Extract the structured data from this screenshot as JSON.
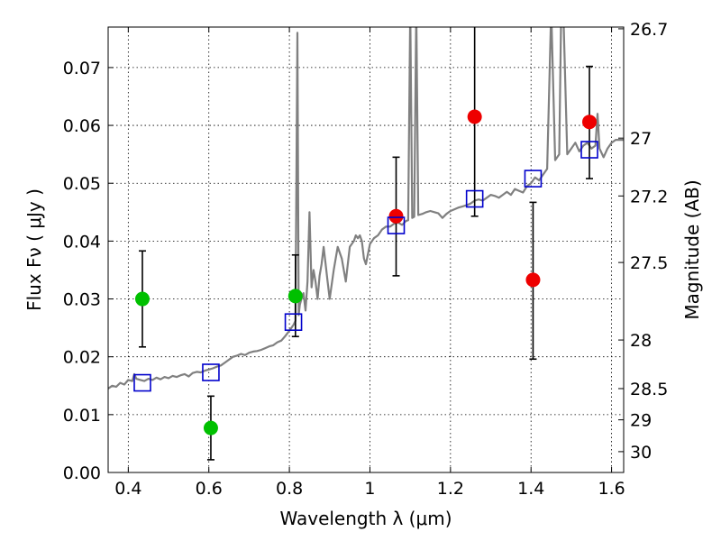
{
  "chart_data": {
    "type": "scatter",
    "xlabel": "Wavelength  λ (μm)",
    "ylabel": "Flux  Fν  ( μJy )",
    "y2label": "Magnitude (AB)",
    "xlim": [
      0.35,
      1.63
    ],
    "ylim": [
      0.0,
      0.077
    ],
    "grid": true,
    "x_ticks": [
      0.4,
      0.6,
      0.8,
      1.0,
      1.2,
      1.4,
      1.6
    ],
    "x_tick_labels": [
      "0.4",
      "0.6",
      "0.8",
      "1",
      "1.2",
      "1.4",
      "1.6"
    ],
    "y_ticks": [
      0.0,
      0.01,
      0.02,
      0.03,
      0.04,
      0.05,
      0.06,
      0.07
    ],
    "y_tick_labels": [
      "0.00",
      "0.01",
      "0.02",
      "0.03",
      "0.04",
      "0.05",
      "0.06",
      "0.07"
    ],
    "y2_ticks": [
      {
        "label": "26.7",
        "flux": 0.0767
      },
      {
        "label": "27",
        "flux": 0.0578
      },
      {
        "label": "27.2",
        "flux": 0.0478
      },
      {
        "label": "27.5",
        "flux": 0.0363
      },
      {
        "label": "28",
        "flux": 0.0229
      },
      {
        "label": "28.5",
        "flux": 0.0145
      },
      {
        "label": "29",
        "flux": 0.0091
      },
      {
        "label": "30",
        "flux": 0.0036
      }
    ],
    "series": [
      {
        "type": "line",
        "color": "#808080",
        "x": [
          0.35,
          0.36,
          0.37,
          0.38,
          0.39,
          0.4,
          0.41,
          0.415,
          0.42,
          0.43,
          0.44,
          0.45,
          0.46,
          0.47,
          0.48,
          0.49,
          0.5,
          0.51,
          0.52,
          0.53,
          0.54,
          0.55,
          0.56,
          0.57,
          0.58,
          0.59,
          0.6,
          0.61,
          0.62,
          0.63,
          0.64,
          0.65,
          0.66,
          0.67,
          0.68,
          0.69,
          0.7,
          0.71,
          0.72,
          0.73,
          0.74,
          0.75,
          0.76,
          0.77,
          0.78,
          0.79,
          0.8,
          0.805,
          0.81,
          0.815,
          0.82,
          0.823,
          0.826,
          0.83,
          0.835,
          0.84,
          0.845,
          0.85,
          0.855,
          0.86,
          0.865,
          0.87,
          0.875,
          0.88,
          0.885,
          0.89,
          0.895,
          0.9,
          0.91,
          0.92,
          0.93,
          0.94,
          0.95,
          0.96,
          0.965,
          0.97,
          0.975,
          0.98,
          0.985,
          0.99,
          1.0,
          1.01,
          1.02,
          1.03,
          1.04,
          1.05,
          1.06,
          1.07,
          1.08,
          1.09,
          1.095,
          1.1,
          1.105,
          1.11,
          1.115,
          1.12,
          1.13,
          1.14,
          1.15,
          1.16,
          1.17,
          1.18,
          1.19,
          1.2,
          1.21,
          1.22,
          1.23,
          1.24,
          1.25,
          1.26,
          1.27,
          1.28,
          1.29,
          1.3,
          1.31,
          1.32,
          1.33,
          1.34,
          1.35,
          1.36,
          1.37,
          1.38,
          1.39,
          1.4,
          1.41,
          1.42,
          1.43,
          1.44,
          1.45,
          1.46,
          1.47,
          1.475,
          1.48,
          1.49,
          1.5,
          1.51,
          1.52,
          1.53,
          1.54,
          1.55,
          1.56,
          1.565,
          1.57,
          1.58,
          1.59,
          1.6,
          1.61,
          1.62,
          1.63
        ],
        "y": [
          0.0145,
          0.015,
          0.0148,
          0.0155,
          0.0152,
          0.016,
          0.0158,
          0.017,
          0.0162,
          0.016,
          0.0158,
          0.0162,
          0.016,
          0.0164,
          0.0161,
          0.0165,
          0.0163,
          0.0167,
          0.0165,
          0.0168,
          0.017,
          0.0166,
          0.0172,
          0.0174,
          0.0173,
          0.0176,
          0.0178,
          0.018,
          0.0183,
          0.0185,
          0.019,
          0.0195,
          0.02,
          0.0202,
          0.0205,
          0.0203,
          0.0207,
          0.0209,
          0.021,
          0.0212,
          0.0215,
          0.0218,
          0.022,
          0.0225,
          0.0228,
          0.0236,
          0.0245,
          0.025,
          0.0255,
          0.0262,
          0.076,
          0.0272,
          0.029,
          0.03,
          0.031,
          0.028,
          0.033,
          0.045,
          0.032,
          0.035,
          0.033,
          0.03,
          0.034,
          0.036,
          0.039,
          0.036,
          0.033,
          0.03,
          0.035,
          0.039,
          0.037,
          0.033,
          0.039,
          0.04,
          0.041,
          0.0405,
          0.041,
          0.04,
          0.037,
          0.036,
          0.0395,
          0.0405,
          0.041,
          0.042,
          0.0425,
          0.0425,
          0.043,
          0.0432,
          0.0428,
          0.0435,
          0.0436,
          0.08,
          0.044,
          0.0442,
          0.08,
          0.0445,
          0.0447,
          0.045,
          0.0452,
          0.045,
          0.0448,
          0.044,
          0.0447,
          0.0452,
          0.0455,
          0.0458,
          0.046,
          0.0462,
          0.0465,
          0.047,
          0.0472,
          0.047,
          0.0475,
          0.048,
          0.0478,
          0.0475,
          0.048,
          0.0485,
          0.048,
          0.049,
          0.0487,
          0.0484,
          0.0495,
          0.05,
          0.051,
          0.0505,
          0.0515,
          0.0525,
          0.08,
          0.054,
          0.055,
          0.08,
          0.08,
          0.055,
          0.056,
          0.057,
          0.0555,
          0.0565,
          0.057,
          0.056,
          0.0565,
          0.062,
          0.056,
          0.0545,
          0.056,
          0.057,
          0.0575,
          0.0575,
          0.0575
        ]
      },
      {
        "type": "scatter",
        "marker": "circle",
        "color": "#00c000",
        "x": [
          0.435,
          0.605,
          0.815
        ],
        "y": [
          0.03,
          0.0077,
          0.0305
        ],
        "err_low": [
          0.0217,
          0.0022,
          0.0235
        ],
        "err_high": [
          0.0383,
          0.0132,
          0.0376
        ]
      },
      {
        "type": "scatter",
        "marker": "circle",
        "color": "#ee0000",
        "x": [
          1.065,
          1.26,
          1.405,
          1.545
        ],
        "y": [
          0.0443,
          0.0615,
          0.0333,
          0.0606
        ],
        "err_low": [
          0.034,
          0.0443,
          0.0196,
          0.0508
        ],
        "err_high": [
          0.0545,
          0.0775,
          0.0467,
          0.0702
        ]
      },
      {
        "type": "scatter",
        "marker": "square",
        "color": "#0000cc",
        "x": [
          0.435,
          0.605,
          0.81,
          1.065,
          1.26,
          1.405,
          1.545
        ],
        "y": [
          0.0155,
          0.0173,
          0.026,
          0.0427,
          0.0473,
          0.0508,
          0.0558
        ]
      }
    ]
  }
}
